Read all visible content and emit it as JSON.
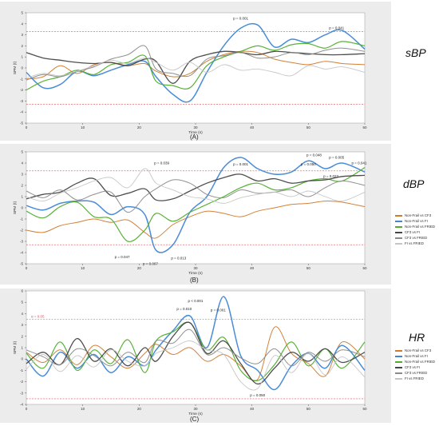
{
  "colors": {
    "series": [
      "#d07a2c",
      "#3f86d6",
      "#4fae2e",
      "#444444",
      "#8a8a8a",
      "#c4c4c4"
    ],
    "threshold": "#d9534f",
    "panel_bg": "#ececec"
  },
  "chart_data": [
    {
      "type": "line",
      "title": "sBP",
      "caption": "(A)",
      "xlabel": "Time (s)",
      "ylabel": "SPM {t}",
      "xlim": [
        0,
        60
      ],
      "ylim": [
        -5,
        5
      ],
      "xticks": [
        0,
        10,
        20,
        30,
        40,
        50,
        60
      ],
      "yticks": [
        -5,
        -4,
        -3,
        -2,
        -1,
        0,
        1,
        2,
        3,
        4,
        5
      ],
      "threshold": 3.3,
      "legend": "none",
      "annotations": [
        {
          "text": "p = 0.001",
          "x": 38,
          "y": 4.4
        },
        {
          "text": "p = 0.041",
          "x": 55,
          "y": 3.5
        }
      ],
      "x": [
        0,
        3,
        6,
        9,
        12,
        15,
        18,
        21,
        23,
        26,
        29,
        32,
        35,
        38,
        41,
        44,
        47,
        50,
        53,
        56,
        60
      ],
      "series": [
        {
          "name": "Non-Frail vs CF3",
          "values": [
            -1.0,
            -0.8,
            0.2,
            -0.5,
            0.3,
            0.5,
            0.2,
            0.4,
            -0.3,
            -0.8,
            -0.5,
            0.6,
            1.2,
            1.5,
            1.4,
            0.8,
            0.5,
            0.3,
            0.6,
            0.4,
            0.3
          ]
        },
        {
          "name": "Non-Frail vs FI",
          "values": [
            -0.4,
            -1.8,
            -1.5,
            -0.3,
            -0.7,
            -0.2,
            0.3,
            0.6,
            -0.8,
            -2.4,
            -3.0,
            -0.4,
            2.0,
            3.6,
            3.9,
            1.9,
            2.6,
            2.3,
            3.0,
            3.4,
            1.7
          ]
        },
        {
          "name": "Non-Frail vs FRIED",
          "values": [
            -2.0,
            -1.2,
            -0.8,
            -0.2,
            -0.6,
            0.3,
            0.5,
            1.1,
            -1.2,
            -1.6,
            -1.8,
            0.2,
            1.0,
            1.5,
            2.0,
            1.6,
            2.1,
            2.2,
            1.8,
            2.4,
            2.0
          ]
        },
        {
          "name": "CF3 vs FI",
          "values": [
            1.4,
            0.9,
            0.7,
            0.5,
            0.4,
            0.5,
            0.2,
            0.8,
            0.6,
            -1.4,
            0.6,
            1.2,
            1.5,
            1.4,
            1.2,
            1.5,
            1.4,
            1.3,
            1.2,
            1.2,
            1.3
          ]
        },
        {
          "name": "CF3 vs FRIED",
          "values": [
            -1.1,
            -0.6,
            -0.8,
            -0.3,
            0.1,
            0.8,
            1.2,
            2.0,
            -0.1,
            -0.5,
            -0.7,
            0.8,
            1.1,
            1.4,
            0.9,
            1.0,
            1.4,
            1.2,
            1.6,
            1.8,
            1.5
          ]
        },
        {
          "name": "FI vs FRIED",
          "values": [
            -0.9,
            -0.5,
            -0.7,
            -0.3,
            0.2,
            0.7,
            0.4,
            0.9,
            0.5,
            -0.2,
            0.5,
            -0.4,
            0.3,
            -0.2,
            -0.1,
            -0.4,
            -0.7,
            0.2,
            -0.1,
            0.1,
            -0.4
          ]
        }
      ]
    },
    {
      "type": "line",
      "title": "dBP",
      "caption": "(B)",
      "xlabel": "Time (s)",
      "ylabel": "SPM {t}",
      "xlim": [
        0,
        60
      ],
      "ylim": [
        -5,
        5
      ],
      "xticks": [
        0,
        10,
        20,
        30,
        40,
        50,
        60
      ],
      "yticks": [
        -5,
        -4,
        -3,
        -2,
        -1,
        0,
        1,
        2,
        3,
        4,
        5
      ],
      "threshold": 3.3,
      "legend": "right",
      "annotations": [
        {
          "text": "p = 0.039",
          "x": 24,
          "y": 3.9
        },
        {
          "text": "p = 0.001",
          "x": 38,
          "y": 3.8
        },
        {
          "text": "p = 0.048",
          "x": 51,
          "y": 4.6
        },
        {
          "text": "p = 0.005",
          "x": 55,
          "y": 4.4
        },
        {
          "text": "p = 0.050",
          "x": 50,
          "y": 3.8
        },
        {
          "text": "p = 0.041",
          "x": 59,
          "y": 3.9
        },
        {
          "text": "p = 0.023",
          "x": 54,
          "y": 2.7
        },
        {
          "text": "p = 0.047",
          "x": 17,
          "y": -4.5
        },
        {
          "text": "p = 0.013",
          "x": 27,
          "y": -4.6
        },
        {
          "text": "p = 0.007",
          "x": 22,
          "y": -5.1
        }
      ],
      "x": [
        0,
        3,
        6,
        9,
        12,
        15,
        18,
        21,
        23,
        26,
        29,
        32,
        35,
        38,
        41,
        44,
        47,
        50,
        53,
        56,
        60
      ],
      "series": [
        {
          "name": "Non-Frail vs CF3",
          "values": [
            -2.0,
            -2.2,
            -1.6,
            -1.3,
            -1.0,
            -1.3,
            -1.1,
            -2.2,
            -2.7,
            -1.5,
            -0.8,
            -0.3,
            -0.5,
            -0.8,
            -0.3,
            0.0,
            0.3,
            0.4,
            0.6,
            0.5,
            0.1
          ]
        },
        {
          "name": "Non-Frail vs FI",
          "values": [
            0.2,
            -0.2,
            0.4,
            0.6,
            0.5,
            -0.6,
            0.1,
            -0.6,
            -3.8,
            -3.3,
            -0.4,
            1.0,
            3.6,
            4.5,
            3.5,
            3.0,
            3.2,
            4.2,
            3.5,
            4.0,
            3.2
          ]
        },
        {
          "name": "Non-Frail vs FRIED",
          "values": [
            -0.3,
            -0.9,
            0.1,
            0.5,
            -0.8,
            -1.0,
            -3.0,
            -2.0,
            -0.5,
            -1.2,
            -0.4,
            0.3,
            1.0,
            1.8,
            2.2,
            1.6,
            1.8,
            2.4,
            2.6,
            2.4,
            3.6
          ]
        },
        {
          "name": "CF3 vs FI",
          "values": [
            0.8,
            1.2,
            1.4,
            2.2,
            2.6,
            1.1,
            1.3,
            1.7,
            0.7,
            0.8,
            1.5,
            2.2,
            2.7,
            3.0,
            2.4,
            2.6,
            2.2,
            2.4,
            2.5,
            2.8,
            2.9
          ]
        },
        {
          "name": "CF3 vs FRIED",
          "values": [
            1.5,
            0.9,
            1.6,
            0.7,
            1.2,
            1.4,
            -0.4,
            1.0,
            1.7,
            2.5,
            2.2,
            1.2,
            0.9,
            1.6,
            1.3,
            1.4,
            1.6,
            1.0,
            1.8,
            2.4,
            2.0
          ]
        },
        {
          "name": "FI vs FRIED",
          "values": [
            1.0,
            0.6,
            1.3,
            1.8,
            2.4,
            2.7,
            1.8,
            3.5,
            2.2,
            1.6,
            1.0,
            0.8,
            0.4,
            0.9,
            1.2,
            1.4,
            1.0,
            1.5,
            1.0,
            0.6,
            1.4
          ]
        }
      ]
    },
    {
      "type": "line",
      "title": "HR",
      "caption": "(C)",
      "xlabel": "Time (s)",
      "ylabel": "SPM {t}",
      "xlim": [
        0,
        60
      ],
      "ylim": [
        -4,
        6
      ],
      "xticks": [
        0,
        10,
        20,
        30,
        40,
        50,
        60
      ],
      "yticks": [
        -4,
        -3,
        -2,
        -1,
        0,
        1,
        2,
        3,
        4,
        5,
        6
      ],
      "threshold_upper": 3.5,
      "threshold_lower": -3.5,
      "threshold_label": "α = 0.05",
      "legend": "right",
      "annotations": [
        {
          "text": "p < 0.001",
          "x": 30,
          "y": 5.0
        },
        {
          "text": "p = 0.010",
          "x": 28,
          "y": 4.3
        },
        {
          "text": "p = 0.001",
          "x": 34,
          "y": 4.2
        },
        {
          "text": "p = 0.050",
          "x": 41,
          "y": -3.3
        }
      ],
      "x": [
        0,
        3,
        6,
        9,
        12,
        15,
        18,
        21,
        23,
        26,
        29,
        32,
        35,
        38,
        41,
        44,
        47,
        50,
        53,
        56,
        60
      ],
      "series": [
        {
          "name": "Non-Frail vs CF3",
          "values": [
            0.6,
            -0.3,
            0.8,
            -0.5,
            1.2,
            0.2,
            -0.8,
            0.5,
            1.3,
            0.4,
            1.0,
            -0.2,
            0.4,
            -0.6,
            -1.8,
            2.8,
            0.5,
            -0.4,
            -1.5,
            1.5,
            0.0
          ]
        },
        {
          "name": "Non-Frail vs FI",
          "values": [
            0.0,
            -1.5,
            0.6,
            -0.8,
            0.4,
            -1.2,
            0.2,
            -0.6,
            0.8,
            2.5,
            3.8,
            1.0,
            5.5,
            0.3,
            -1.0,
            -2.7,
            -0.6,
            0.5,
            -0.8,
            1.2,
            -1.0
          ]
        },
        {
          "name": "Non-Frail vs FRIED",
          "values": [
            0.5,
            -0.8,
            1.5,
            -1.0,
            0.8,
            -0.4,
            1.7,
            -1.2,
            1.6,
            2.4,
            3.2,
            0.8,
            1.9,
            -1.0,
            -1.9,
            -0.5,
            1.5,
            -0.6,
            0.9,
            -0.8,
            1.5
          ]
        },
        {
          "name": "CF3 vs FI",
          "values": [
            -0.4,
            0.6,
            -0.5,
            1.8,
            -0.2,
            0.9,
            -0.6,
            1.0,
            -0.2,
            2.0,
            3.2,
            0.5,
            1.6,
            -0.4,
            -2.2,
            -0.8,
            0.6,
            -0.2,
            0.9,
            -0.3,
            0.6
          ]
        },
        {
          "name": "CF3 vs FRIED",
          "values": [
            0.8,
            0.2,
            -0.5,
            0.9,
            0.3,
            -0.6,
            0.6,
            -0.3,
            1.6,
            1.4,
            2.6,
            0.4,
            1.0,
            0.1,
            -0.4,
            0.9,
            -0.6,
            0.6,
            -0.2,
            0.8,
            0.2
          ]
        },
        {
          "name": "FI vs FRIED",
          "values": [
            -0.9,
            0.4,
            -1.1,
            0.3,
            -0.7,
            0.8,
            -0.2,
            -0.6,
            0.5,
            1.0,
            1.6,
            0.8,
            0.4,
            -2.0,
            -2.6,
            0.3,
            -1.2,
            0.5,
            -1.4,
            0.2,
            -1.6
          ]
        }
      ]
    }
  ]
}
